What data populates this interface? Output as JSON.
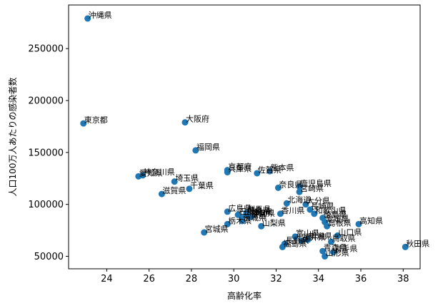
{
  "chart_data": {
    "type": "scatter",
    "xlabel": "高齢化率",
    "ylabel": "人口100万人あたりの感染者数",
    "xlim": [
      22.2,
      38.8
    ],
    "ylim": [
      38000,
      292000
    ],
    "xticks": [
      24,
      26,
      28,
      30,
      32,
      34,
      36,
      38
    ],
    "yticks": [
      50000,
      100000,
      150000,
      200000,
      250000
    ],
    "grid": false,
    "color": "#1f77b4",
    "points": [
      {
        "label": "沖縄県",
        "x": 23.1,
        "y": 279000
      },
      {
        "label": "東京都",
        "x": 22.9,
        "y": 178000
      },
      {
        "label": "大阪府",
        "x": 27.7,
        "y": 179000
      },
      {
        "label": "福岡県",
        "x": 28.2,
        "y": 152000
      },
      {
        "label": "愛知県",
        "x": 25.5,
        "y": 127000
      },
      {
        "label": "神奈川県",
        "x": 25.7,
        "y": 128000
      },
      {
        "label": "埼玉県",
        "x": 27.2,
        "y": 122000
      },
      {
        "label": "千葉県",
        "x": 27.9,
        "y": 115000
      },
      {
        "label": "滋賀県",
        "x": 26.6,
        "y": 110000
      },
      {
        "label": "京都府",
        "x": 29.7,
        "y": 133000
      },
      {
        "label": "兵庫県",
        "x": 29.7,
        "y": 131000
      },
      {
        "label": "佐賀県",
        "x": 31.1,
        "y": 130000
      },
      {
        "label": "熊本県",
        "x": 31.7,
        "y": 132000
      },
      {
        "label": "奈良県",
        "x": 32.1,
        "y": 116000
      },
      {
        "label": "鹿児島県",
        "x": 33.1,
        "y": 117000
      },
      {
        "label": "宮崎県",
        "x": 33.1,
        "y": 112000
      },
      {
        "label": "北海道",
        "x": 32.5,
        "y": 101000
      },
      {
        "label": "大分県",
        "x": 33.4,
        "y": 100000
      },
      {
        "label": "長崎県",
        "x": 33.6,
        "y": 95000
      },
      {
        "label": "和歌山県",
        "x": 33.8,
        "y": 91000
      },
      {
        "label": "広島県",
        "x": 29.7,
        "y": 93000
      },
      {
        "label": "香川県",
        "x": 32.2,
        "y": 91000
      },
      {
        "label": "石川県",
        "x": 30.2,
        "y": 90000
      },
      {
        "label": "岐阜県",
        "x": 30.6,
        "y": 91000
      },
      {
        "label": "三重県",
        "x": 30.4,
        "y": 87000
      },
      {
        "label": "静岡県",
        "x": 30.8,
        "y": 88000
      },
      {
        "label": "群馬県",
        "x": 30.6,
        "y": 92000
      },
      {
        "label": "岡山県",
        "x": 30.7,
        "y": 89000
      },
      {
        "label": "徳島県",
        "x": 34.2,
        "y": 87000
      },
      {
        "label": "愛媛県",
        "x": 34.3,
        "y": 83000
      },
      {
        "label": "栃木県",
        "x": 29.7,
        "y": 81000
      },
      {
        "label": "茨城県",
        "x": 30.4,
        "y": 84000
      },
      {
        "label": "山梨県",
        "x": 31.3,
        "y": 79000
      },
      {
        "label": "島根県",
        "x": 34.4,
        "y": 79000
      },
      {
        "label": "高知県",
        "x": 35.9,
        "y": 81000
      },
      {
        "label": "宮城県",
        "x": 28.6,
        "y": 73000
      },
      {
        "label": "富山県",
        "x": 32.9,
        "y": 69000
      },
      {
        "label": "福井県",
        "x": 33.2,
        "y": 65000
      },
      {
        "label": "新潟県",
        "x": 33.5,
        "y": 66000
      },
      {
        "label": "長野県",
        "x": 32.4,
        "y": 62000
      },
      {
        "label": "福島県",
        "x": 32.3,
        "y": 59000
      },
      {
        "label": "山口県",
        "x": 34.9,
        "y": 70000
      },
      {
        "label": "鳥取県",
        "x": 34.6,
        "y": 64000
      },
      {
        "label": "青森県",
        "x": 34.2,
        "y": 55000
      },
      {
        "label": "岩手県",
        "x": 34.7,
        "y": 54000
      },
      {
        "label": "山形県",
        "x": 34.3,
        "y": 50000
      },
      {
        "label": "秋田県",
        "x": 38.1,
        "y": 59000
      }
    ]
  }
}
